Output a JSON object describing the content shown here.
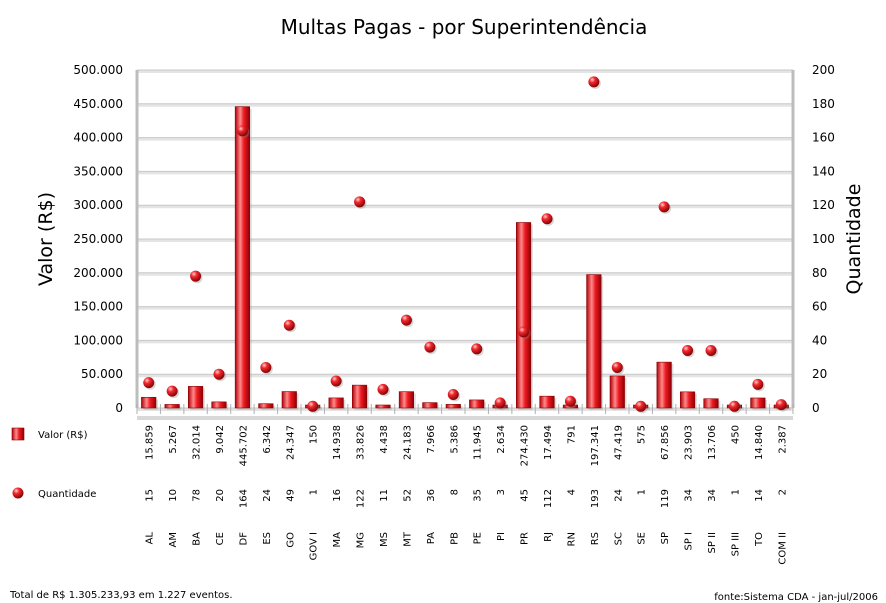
{
  "chart_data": {
    "type": "bar",
    "title": "Multas Pagas - por Superintendência",
    "ylabel_left": "Valor (R$)",
    "ylabel_right": "Quantidade",
    "ylim_left": [
      0,
      500000
    ],
    "ylim_right": [
      0,
      200
    ],
    "yticks_left": [
      "500.000",
      "450.000",
      "400.000",
      "350.000",
      "300.000",
      "250.000",
      "200.000",
      "150.000",
      "100.000",
      "50.000",
      "0"
    ],
    "yticks_right": [
      "200",
      "180",
      "160",
      "140",
      "120",
      "100",
      "80",
      "60",
      "40",
      "20",
      "0"
    ],
    "grid": true,
    "legend_position": "bottom-left",
    "categories": [
      "AL",
      "AM",
      "BA",
      "CE",
      "DF",
      "ES",
      "GO",
      "GOV I",
      "MA",
      "MG",
      "MS",
      "MT",
      "PA",
      "PB",
      "PE",
      "PI",
      "PR",
      "RJ",
      "RN",
      "RS",
      "SC",
      "SE",
      "SP",
      "SP I",
      "SP II",
      "SP III",
      "TO",
      "COM II"
    ],
    "series": [
      {
        "name": "Valor (R$)",
        "type": "bar",
        "axis": "left",
        "values": [
          15859,
          5267,
          32014,
          9042,
          445702,
          6342,
          24347,
          150,
          14938,
          33826,
          4438,
          24183,
          7966,
          5386,
          11945,
          2634,
          274430,
          17494,
          791,
          197341,
          47419,
          575,
          67856,
          23903,
          13706,
          450,
          14840,
          2387
        ],
        "labels": [
          "15.859",
          "5.267",
          "32.014",
          "9.042",
          "445.702",
          "6.342",
          "24.347",
          "150",
          "14.938",
          "33.826",
          "4.438",
          "24.183",
          "7.966",
          "5.386",
          "11.945",
          "2.634",
          "274.430",
          "17.494",
          "791",
          "197.341",
          "47.419",
          "575",
          "67.856",
          "23.903",
          "13.706",
          "450",
          "14.840",
          "2.387"
        ]
      },
      {
        "name": "Quantidade",
        "type": "scatter",
        "axis": "right",
        "values": [
          15,
          10,
          78,
          20,
          164,
          24,
          49,
          1,
          16,
          122,
          11,
          52,
          36,
          8,
          35,
          3,
          45,
          112,
          4,
          193,
          24,
          1,
          119,
          34,
          34,
          1,
          14,
          2
        ],
        "labels": [
          "15",
          "10",
          "78",
          "20",
          "164",
          "24",
          "49",
          "1",
          "16",
          "122",
          "11",
          "52",
          "36",
          "8",
          "35",
          "3",
          "45",
          "112",
          "4",
          "193",
          "24",
          "1",
          "119",
          "34",
          "34",
          "1",
          "14",
          "2"
        ]
      }
    ],
    "colors": {
      "bar": "#e8141c",
      "bar_dark": "#8a0000",
      "dot": "#e8141c",
      "grid": "#c8c8c8"
    }
  },
  "footer": {
    "left": "Total de R$ 1.305.233,93 em 1.227 eventos.",
    "right": "fonte:Sistema CDA - jan-jul/2006"
  }
}
